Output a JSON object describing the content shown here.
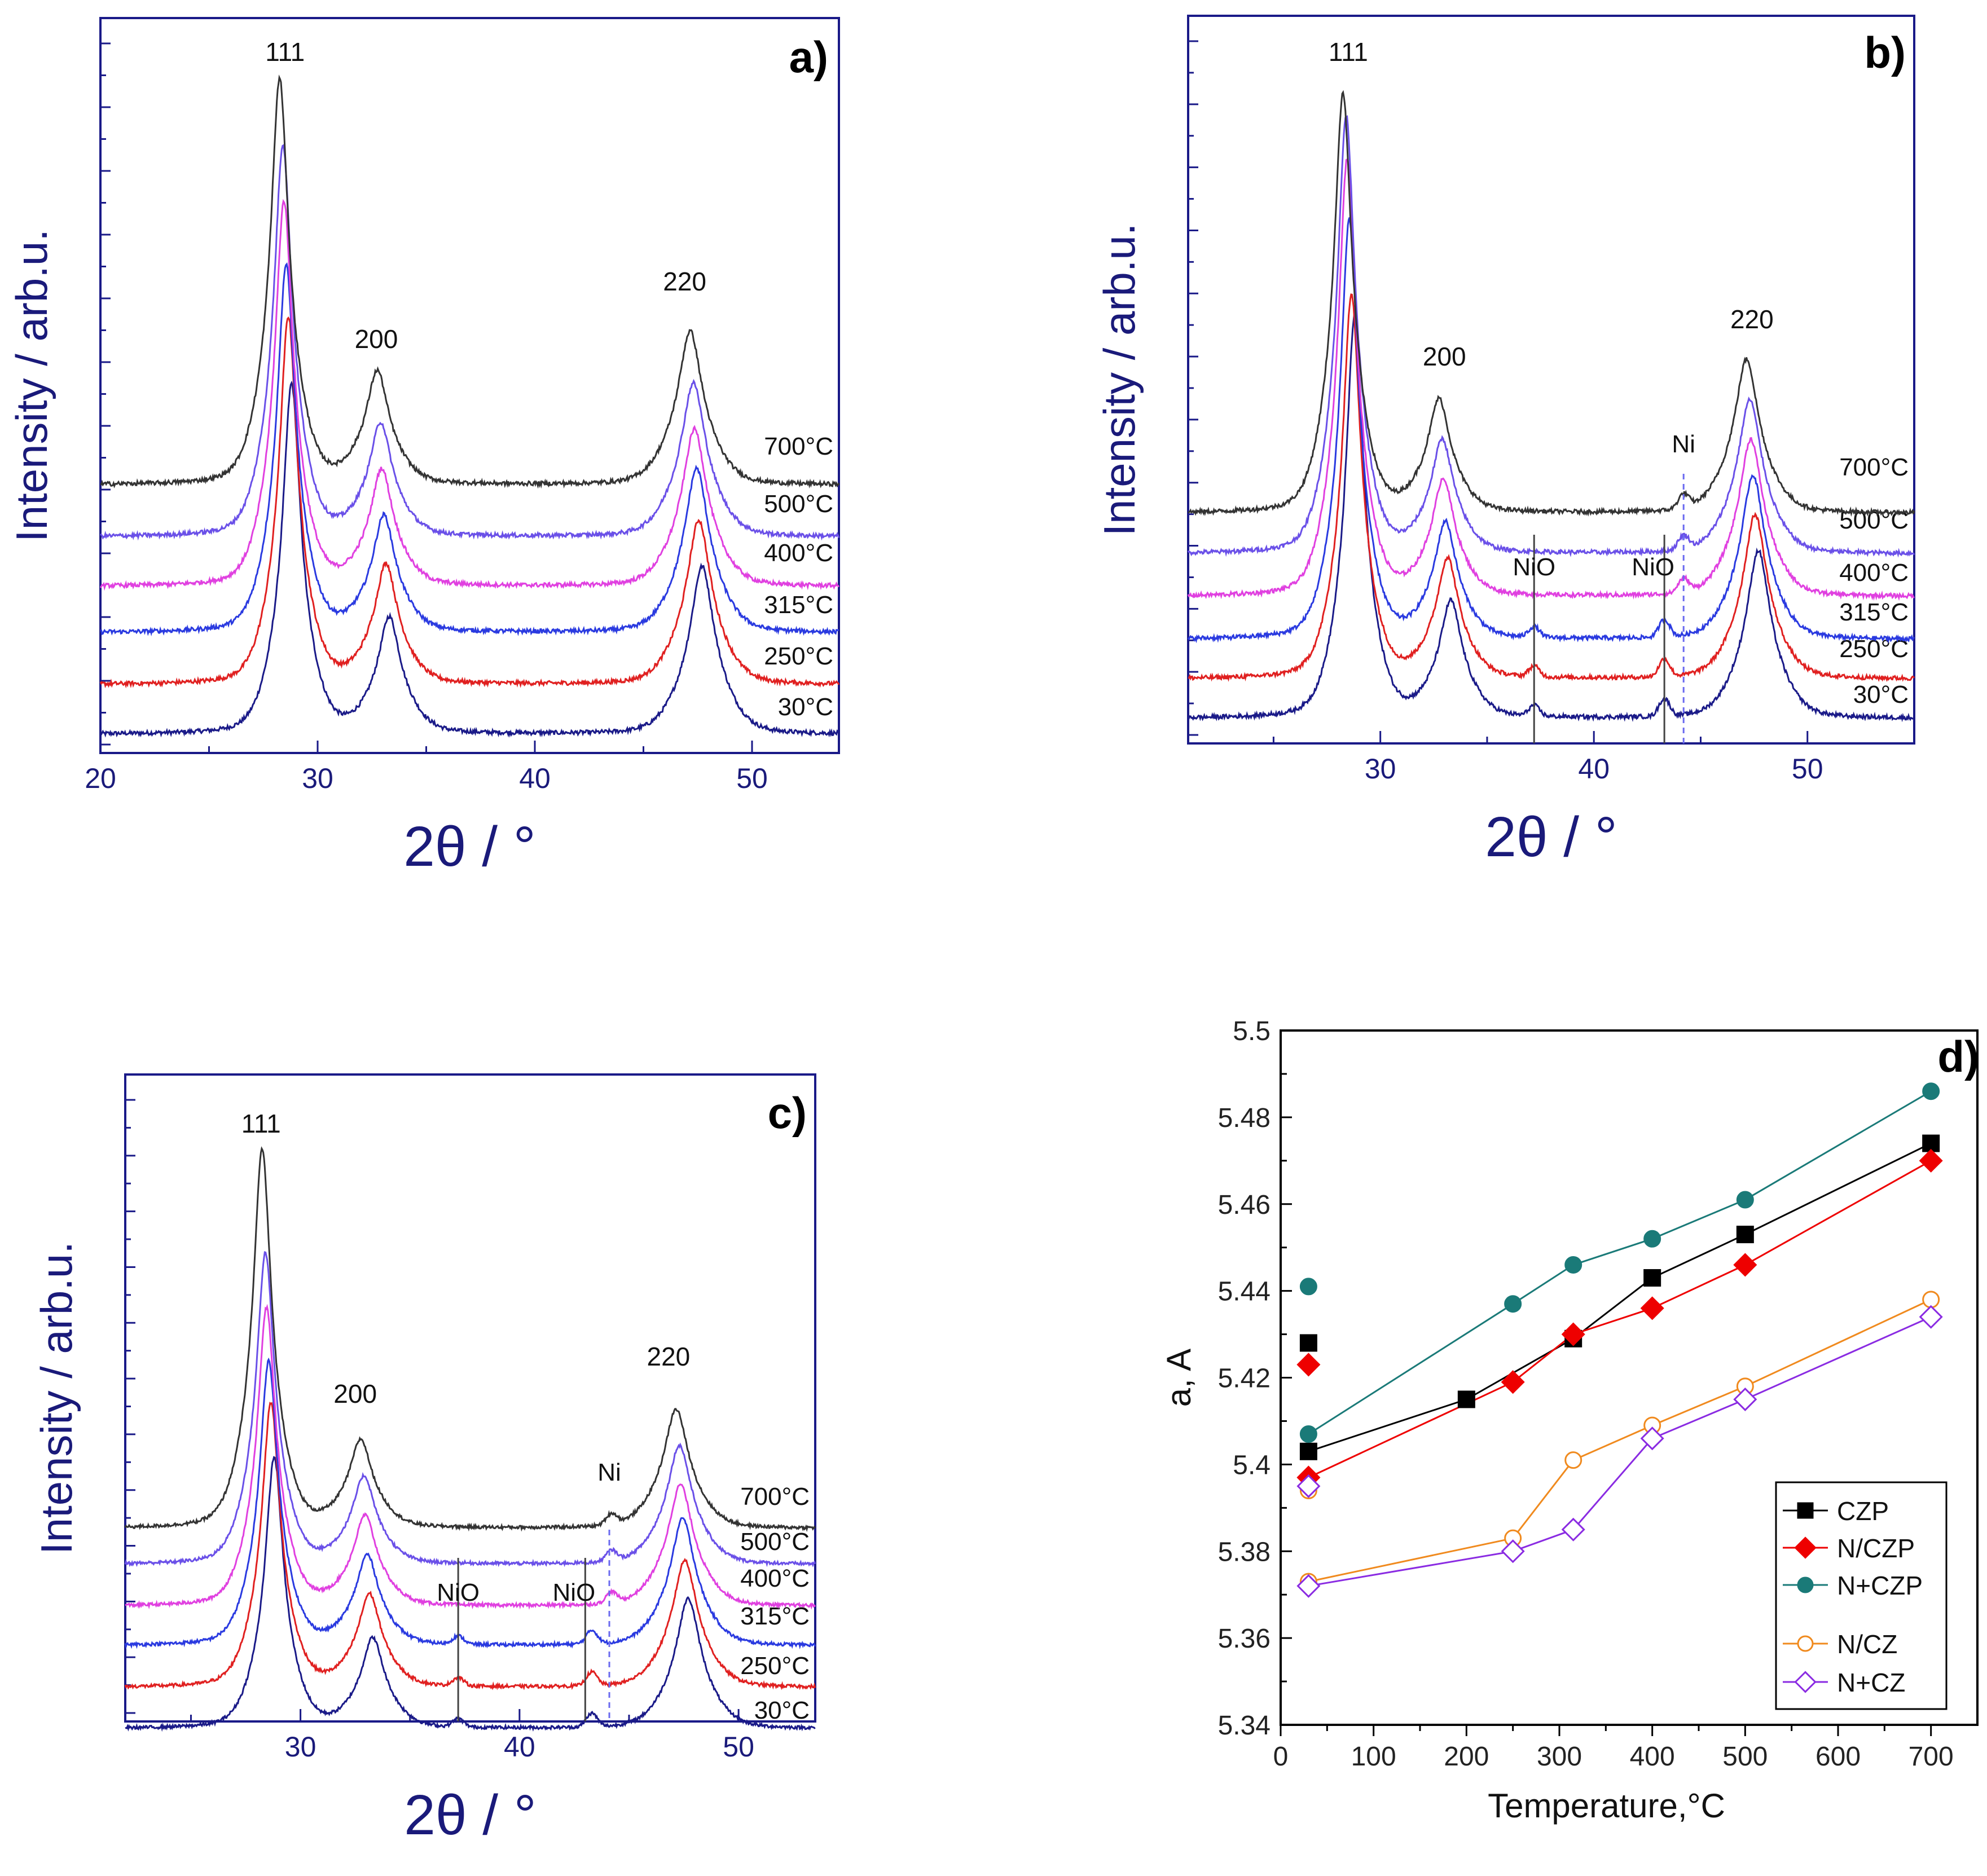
{
  "chart_data": [
    {
      "panel": "a)",
      "type": "line",
      "xlabel": "2θ / °",
      "ylabel": "Intensity / arb.u.",
      "xlim": [
        20,
        54
      ],
      "xticks": [
        20,
        30,
        40,
        50
      ],
      "peaks": {
        "111": 28.5,
        "200": 33.0,
        "220": 47.4
      },
      "peak_labels": [
        {
          "text": "111",
          "x": 28.5
        },
        {
          "text": "200",
          "x": 32.7
        },
        {
          "text": "220",
          "x": 46.9
        }
      ],
      "reflections": [],
      "series": [
        {
          "name": "30°C",
          "color": "#1a1a88",
          "shift": 0.3,
          "a111": 1.0,
          "a200": 0.33,
          "a220": 0.48
        },
        {
          "name": "250°C",
          "color": "#e02020",
          "shift": 0.15,
          "a111": 1.05,
          "a200": 0.34,
          "a220": 0.47
        },
        {
          "name": "315°C",
          "color": "#2a3ae0",
          "shift": 0.05,
          "a111": 1.05,
          "a200": 0.33,
          "a220": 0.47
        },
        {
          "name": "400°C",
          "color": "#e040e0",
          "shift": -0.05,
          "a111": 1.1,
          "a200": 0.33,
          "a220": 0.45
        },
        {
          "name": "500°C",
          "color": "#6a50e8",
          "shift": -0.1,
          "a111": 1.12,
          "a200": 0.32,
          "a220": 0.44
        },
        {
          "name": "700°C",
          "color": "#333333",
          "shift": -0.25,
          "a111": 1.16,
          "a200": 0.32,
          "a220": 0.44
        }
      ]
    },
    {
      "panel": "b)",
      "type": "line",
      "xlabel": "2θ / °",
      "ylabel": "Intensity / arb.u.",
      "xlim": [
        21,
        55
      ],
      "xticks": [
        30,
        40,
        50
      ],
      "peaks": {
        "111": 28.5,
        "200": 33.0,
        "220": 47.4
      },
      "peak_labels": [
        {
          "text": "111",
          "x": 28.5
        },
        {
          "text": "200",
          "x": 33.0
        },
        {
          "text": "220",
          "x": 47.4
        }
      ],
      "reflections": [
        {
          "label": "NiO",
          "x": 37.2,
          "style": "solid",
          "color": "#444444"
        },
        {
          "label": "NiO",
          "x": 43.3,
          "style": "solid",
          "color": "#444444"
        },
        {
          "label": "Ni",
          "x": 44.2,
          "style": "dashed",
          "color": "#6a6af0"
        }
      ],
      "series": [
        {
          "name": "30°C",
          "color": "#1a1a88",
          "shift": 0.3,
          "a111": 1.15,
          "a200": 0.33,
          "a220": 0.48
        },
        {
          "name": "250°C",
          "color": "#e02020",
          "shift": 0.15,
          "a111": 1.1,
          "a200": 0.34,
          "a220": 0.47
        },
        {
          "name": "315°C",
          "color": "#2a3ae0",
          "shift": 0.05,
          "a111": 1.2,
          "a200": 0.33,
          "a220": 0.47
        },
        {
          "name": "400°C",
          "color": "#e040e0",
          "shift": -0.05,
          "a111": 1.25,
          "a200": 0.33,
          "a220": 0.45
        },
        {
          "name": "500°C",
          "color": "#6a50e8",
          "shift": -0.1,
          "a111": 1.25,
          "a200": 0.32,
          "a220": 0.44
        },
        {
          "name": "700°C",
          "color": "#333333",
          "shift": -0.25,
          "a111": 1.2,
          "a200": 0.32,
          "a220": 0.44
        }
      ]
    },
    {
      "panel": "c)",
      "type": "line",
      "xlabel": "2θ / °",
      "ylabel": "Intensity / arb.u.",
      "xlim": [
        22,
        53.5
      ],
      "xticks": [
        30,
        40,
        50
      ],
      "peaks": {
        "111": 28.5,
        "200": 33.0,
        "220": 47.4
      },
      "peak_labels": [
        {
          "text": "111",
          "x": 28.2
        },
        {
          "text": "200",
          "x": 32.5
        },
        {
          "text": "220",
          "x": 46.8
        }
      ],
      "reflections": [
        {
          "label": "NiO",
          "x": 37.2,
          "style": "solid",
          "color": "#444444"
        },
        {
          "label": "NiO",
          "x": 43.0,
          "style": "solid",
          "color": "#444444"
        },
        {
          "label": "Ni",
          "x": 44.1,
          "style": "dashed",
          "color": "#6a6af0"
        }
      ],
      "series": [
        {
          "name": "30°C",
          "color": "#1a1a88",
          "shift": 0.3,
          "a111": 1.0,
          "a200": 0.33,
          "a220": 0.48
        },
        {
          "name": "250°C",
          "color": "#e02020",
          "shift": 0.15,
          "a111": 1.05,
          "a200": 0.34,
          "a220": 0.47
        },
        {
          "name": "315°C",
          "color": "#2a3ae0",
          "shift": 0.05,
          "a111": 1.05,
          "a200": 0.33,
          "a220": 0.47
        },
        {
          "name": "400°C",
          "color": "#e040e0",
          "shift": -0.05,
          "a111": 1.1,
          "a200": 0.33,
          "a220": 0.45
        },
        {
          "name": "500°C",
          "color": "#6a50e8",
          "shift": -0.1,
          "a111": 1.15,
          "a200": 0.32,
          "a220": 0.44
        },
        {
          "name": "700°C",
          "color": "#333333",
          "shift": -0.25,
          "a111": 1.4,
          "a200": 0.32,
          "a220": 0.44
        }
      ]
    },
    {
      "panel": "d)",
      "type": "line",
      "xlabel": "Temperature,°C",
      "ylabel": "a,  A",
      "xlim": [
        0,
        750
      ],
      "ylim": [
        5.34,
        5.5
      ],
      "xticks": [
        0,
        100,
        200,
        300,
        400,
        500,
        600,
        700
      ],
      "yticks": [
        5.34,
        5.36,
        5.38,
        5.4,
        5.42,
        5.44,
        5.46,
        5.48,
        5.5
      ],
      "legend_position": "bottom-right",
      "series": [
        {
          "name": "CZP",
          "color": "#000000",
          "marker": "square",
          "filled": true,
          "points": [
            [
              30,
              5.428
            ],
            [
              30,
              5.403
            ],
            [
              200,
              5.415
            ],
            [
              315,
              5.429
            ],
            [
              400,
              5.443
            ],
            [
              500,
              5.453
            ],
            [
              700,
              5.474
            ]
          ],
          "line": [
            [
              30,
              5.403
            ],
            [
              200,
              5.415
            ],
            [
              315,
              5.429
            ],
            [
              400,
              5.443
            ],
            [
              500,
              5.453
            ],
            [
              700,
              5.474
            ]
          ]
        },
        {
          "name": "N/CZP",
          "color": "#ee0000",
          "marker": "diamond",
          "filled": true,
          "points": [
            [
              30,
              5.423
            ],
            [
              30,
              5.397
            ],
            [
              250,
              5.419
            ],
            [
              315,
              5.43
            ],
            [
              400,
              5.436
            ],
            [
              500,
              5.446
            ],
            [
              700,
              5.47
            ]
          ],
          "line": [
            [
              30,
              5.397
            ],
            [
              250,
              5.419
            ],
            [
              315,
              5.43
            ],
            [
              400,
              5.436
            ],
            [
              500,
              5.446
            ],
            [
              700,
              5.47
            ]
          ]
        },
        {
          "name": "N+CZP",
          "color": "#1a7a78",
          "marker": "circle",
          "filled": true,
          "points": [
            [
              30,
              5.441
            ],
            [
              30,
              5.407
            ],
            [
              250,
              5.437
            ],
            [
              315,
              5.446
            ],
            [
              400,
              5.452
            ],
            [
              500,
              5.461
            ],
            [
              700,
              5.486
            ]
          ],
          "line": [
            [
              30,
              5.407
            ],
            [
              250,
              5.437
            ],
            [
              315,
              5.446
            ],
            [
              400,
              5.452
            ],
            [
              500,
              5.461
            ],
            [
              700,
              5.486
            ]
          ]
        },
        {
          "name": "N/CZ",
          "color": "#f08a1e",
          "marker": "circle",
          "filled": false,
          "points": [
            [
              30,
              5.394
            ],
            [
              30,
              5.373
            ],
            [
              250,
              5.383
            ],
            [
              315,
              5.401
            ],
            [
              400,
              5.409
            ],
            [
              500,
              5.418
            ],
            [
              700,
              5.438
            ]
          ],
          "line": [
            [
              30,
              5.373
            ],
            [
              250,
              5.383
            ],
            [
              315,
              5.401
            ],
            [
              400,
              5.409
            ],
            [
              500,
              5.418
            ],
            [
              700,
              5.438
            ]
          ]
        },
        {
          "name": "N+CZ",
          "color": "#8a2be2",
          "marker": "diamond",
          "filled": false,
          "points": [
            [
              30,
              5.395
            ],
            [
              30,
              5.372
            ],
            [
              250,
              5.38
            ],
            [
              315,
              5.385
            ],
            [
              400,
              5.406
            ],
            [
              500,
              5.415
            ],
            [
              700,
              5.434
            ]
          ],
          "line": [
            [
              30,
              5.372
            ],
            [
              250,
              5.38
            ],
            [
              315,
              5.385
            ],
            [
              400,
              5.406
            ],
            [
              500,
              5.415
            ],
            [
              700,
              5.434
            ]
          ]
        }
      ]
    }
  ]
}
